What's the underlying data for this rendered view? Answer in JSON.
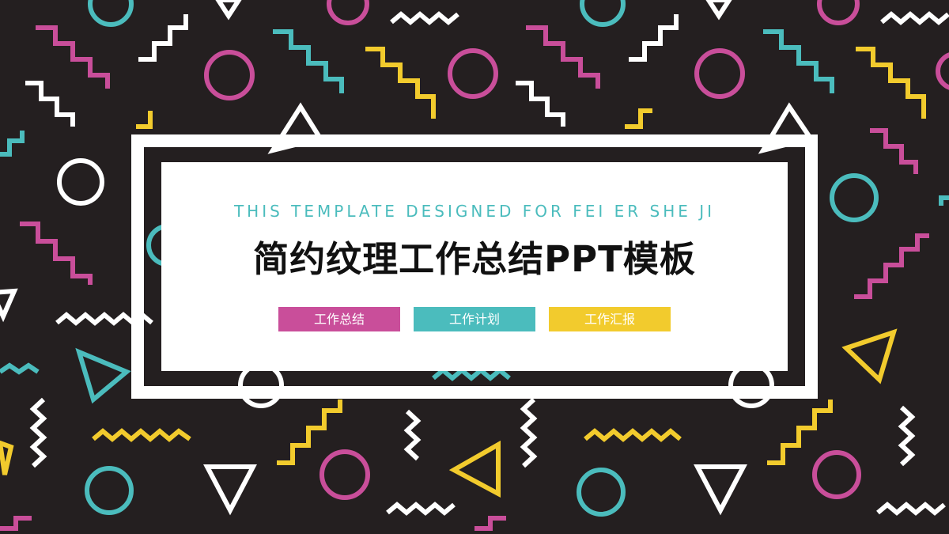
{
  "slide": {
    "subtitle": "THIS TEMPLATE DESIGNED FOR FEI ER SHE JI",
    "title": "简约纹理工作总结PPT模板",
    "tags": [
      {
        "label": "工作总结",
        "color": "#c94e9a"
      },
      {
        "label": "工作计划",
        "color": "#4bbcbd"
      },
      {
        "label": "工作汇报",
        "color": "#f2cb2d"
      }
    ]
  },
  "palette": {
    "background": "#241f20",
    "pink": "#c94e9a",
    "teal": "#4bbcbd",
    "yellow": "#f2cb2d",
    "white": "#ffffff"
  }
}
